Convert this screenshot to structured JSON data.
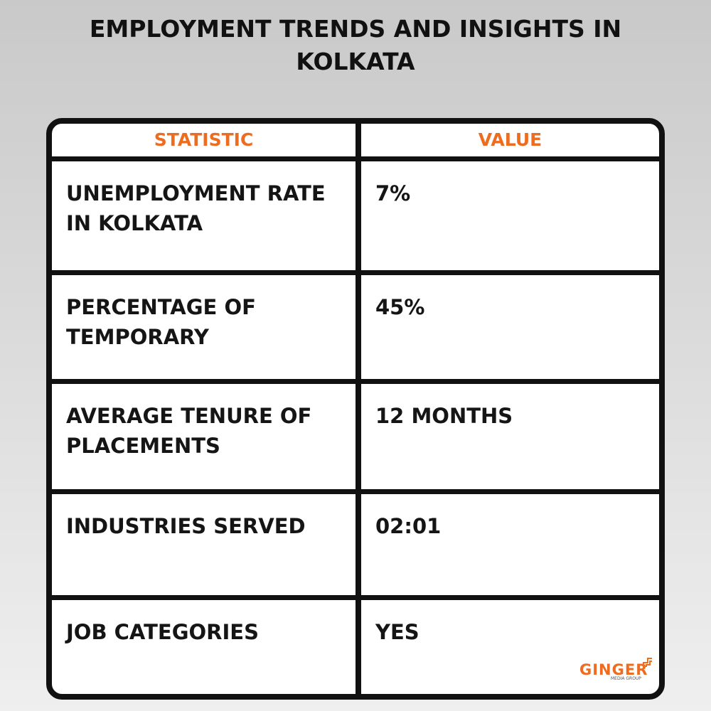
{
  "header": {
    "title": "EMPLOYMENT TRENDS AND INSIGHTS IN KOLKATA"
  },
  "table": {
    "header": [
      "STATISTIC",
      "VALUE"
    ],
    "rows": [
      [
        "UNEMPLOYMENT RATE IN KOLKATA",
        "7%"
      ],
      [
        "PERCENTAGE OF TEMPORARY",
        "45%"
      ],
      [
        "AVERAGE TENURE OF PLACEMENTS",
        "12 MONTHS"
      ],
      [
        "INDUSTRIES SERVED",
        "02:01"
      ],
      [
        "JOB CATEGORIES",
        "YES"
      ]
    ]
  },
  "logo": {
    "name": "GINGER",
    "tagline": "MEDIA GROUP"
  }
}
